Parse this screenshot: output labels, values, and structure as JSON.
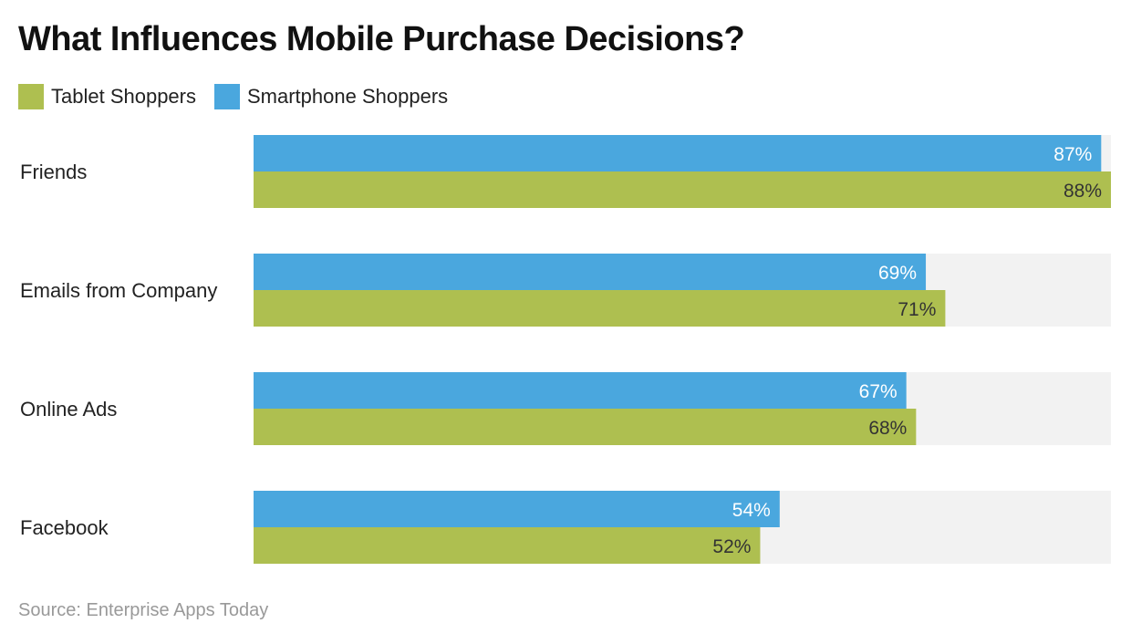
{
  "chart_data": {
    "type": "bar",
    "orientation": "horizontal",
    "title": "What Influences Mobile Purchase Decisions?",
    "categories": [
      "Friends",
      "Emails from Company",
      "Online Ads",
      "Facebook"
    ],
    "series": [
      {
        "name": "Smartphone Shoppers",
        "color": "#4aa7de",
        "values": [
          87,
          69,
          67,
          54
        ]
      },
      {
        "name": "Tablet Shoppers",
        "color": "#aebf50",
        "values": [
          88,
          71,
          68,
          52
        ]
      }
    ],
    "legend_order": [
      "Tablet Shoppers",
      "Smartphone Shoppers"
    ],
    "value_suffix": "%",
    "xlim": [
      0,
      88
    ],
    "track_color": "#f2f2f2",
    "legend_position": "top-left",
    "grid": false
  },
  "source": "Source: Enterprise Apps Today"
}
